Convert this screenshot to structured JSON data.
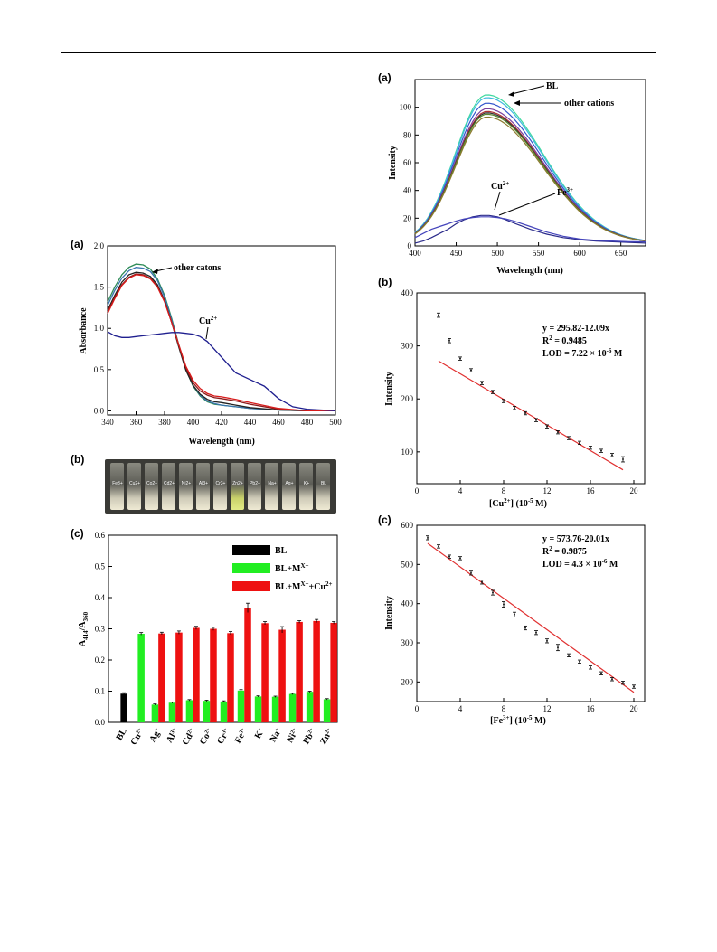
{
  "panel_labels": {
    "uv_a": "(a)",
    "photo_b": "(b)",
    "bar_c": "(c)",
    "fl_a": "(a)",
    "cu_b": "(b)",
    "fe_c": "(c)"
  },
  "vial_labels": [
    "Fe3+",
    "Cu2+",
    "Co2+",
    "Cd2+",
    "Ni2+",
    "Al3+",
    "Cr3+",
    "Zn2+",
    "Pb2+",
    "Na+",
    "Ag+",
    "K+",
    "BL"
  ],
  "chart_data": [
    {
      "id": "uv_absorbance",
      "type": "line",
      "xlabel": "Wavelength (nm)",
      "ylabel": "Absorbance",
      "xlim": [
        340,
        500
      ],
      "ylim": [
        -0.05,
        2.0
      ],
      "xticks": [
        340,
        360,
        380,
        400,
        420,
        440,
        460,
        480,
        500
      ],
      "yticks": [
        "0.0",
        "0.5",
        "1.0",
        "1.5",
        "2.0"
      ],
      "annotations": {
        "others": "other catons",
        "cu_base": "Cu",
        "cu_sup": "2+"
      },
      "series": [
        {
          "color": "#2e8b57",
          "x": [
            340,
            345,
            350,
            355,
            360,
            365,
            370,
            375,
            380,
            385,
            390,
            395,
            400,
            405,
            410,
            415,
            420,
            430,
            440,
            460,
            480,
            500
          ],
          "y": [
            1.32,
            1.5,
            1.65,
            1.74,
            1.78,
            1.77,
            1.72,
            1.6,
            1.4,
            1.12,
            0.8,
            0.5,
            0.3,
            0.18,
            0.11,
            0.08,
            0.07,
            0.05,
            0.03,
            0.01,
            0.0,
            0.0
          ]
        },
        {
          "color": "#3a74b0",
          "x": [
            340,
            345,
            350,
            355,
            360,
            365,
            370,
            375,
            380,
            385,
            390,
            395,
            400,
            405,
            410,
            415,
            420,
            430,
            440,
            460,
            480,
            500
          ],
          "y": [
            1.28,
            1.46,
            1.61,
            1.7,
            1.74,
            1.73,
            1.69,
            1.58,
            1.38,
            1.1,
            0.79,
            0.5,
            0.31,
            0.19,
            0.12,
            0.09,
            0.07,
            0.05,
            0.03,
            0.01,
            0.0,
            0.0
          ]
        },
        {
          "color": "#222222",
          "x": [
            340,
            345,
            350,
            355,
            360,
            365,
            370,
            375,
            380,
            385,
            390,
            395,
            400,
            405,
            410,
            415,
            420,
            430,
            440,
            460,
            480,
            500
          ],
          "y": [
            1.22,
            1.4,
            1.56,
            1.65,
            1.68,
            1.67,
            1.63,
            1.53,
            1.34,
            1.07,
            0.77,
            0.49,
            0.31,
            0.2,
            0.14,
            0.11,
            0.1,
            0.07,
            0.04,
            0.01,
            0.0,
            0.0
          ]
        },
        {
          "color": "#8b1a1a",
          "x": [
            340,
            345,
            350,
            355,
            360,
            365,
            370,
            375,
            380,
            385,
            390,
            395,
            400,
            405,
            410,
            415,
            420,
            430,
            440,
            460,
            480,
            500
          ],
          "y": [
            1.2,
            1.38,
            1.53,
            1.62,
            1.66,
            1.65,
            1.61,
            1.51,
            1.33,
            1.07,
            0.79,
            0.52,
            0.34,
            0.24,
            0.19,
            0.16,
            0.15,
            0.12,
            0.08,
            0.02,
            0.0,
            0.0
          ]
        },
        {
          "color": "#d81b1b",
          "x": [
            340,
            345,
            350,
            355,
            360,
            365,
            370,
            375,
            380,
            385,
            390,
            395,
            400,
            405,
            410,
            415,
            420,
            430,
            440,
            460,
            480,
            500
          ],
          "y": [
            1.18,
            1.36,
            1.52,
            1.61,
            1.65,
            1.64,
            1.6,
            1.5,
            1.32,
            1.07,
            0.8,
            0.54,
            0.37,
            0.27,
            0.21,
            0.18,
            0.17,
            0.14,
            0.1,
            0.03,
            0.0,
            0.0
          ]
        },
        {
          "color": "#1f1f8f",
          "x": [
            340,
            345,
            350,
            355,
            360,
            365,
            370,
            375,
            380,
            385,
            390,
            395,
            400,
            405,
            410,
            420,
            430,
            440,
            450,
            460,
            470,
            480,
            490,
            500
          ],
          "y": [
            0.96,
            0.91,
            0.89,
            0.89,
            0.9,
            0.91,
            0.92,
            0.93,
            0.94,
            0.95,
            0.95,
            0.94,
            0.93,
            0.9,
            0.84,
            0.65,
            0.46,
            0.38,
            0.3,
            0.15,
            0.05,
            0.02,
            0.01,
            0.0
          ]
        }
      ]
    },
    {
      "id": "ratio_bars",
      "type": "bar",
      "ylabel": "A414/A360",
      "ylim": [
        0,
        0.6
      ],
      "yticks": [
        "0.0",
        "0.1",
        "0.2",
        "0.3",
        "0.4",
        "0.5",
        "0.6"
      ],
      "categories": [
        {
          "b": "BL",
          "s": ""
        },
        {
          "b": "Cu",
          "s": "2+"
        },
        {
          "b": "Ag",
          "s": "+"
        },
        {
          "b": "Al",
          "s": "3+"
        },
        {
          "b": "Cd",
          "s": "2+"
        },
        {
          "b": "Co",
          "s": "2+"
        },
        {
          "b": "Cr",
          "s": "3+"
        },
        {
          "b": "Fe",
          "s": "3+"
        },
        {
          "b": "K",
          "s": "+"
        },
        {
          "b": "Na",
          "s": "+"
        },
        {
          "b": "Ni",
          "s": "2+"
        },
        {
          "b": "Pb",
          "s": "2+"
        },
        {
          "b": "Zn",
          "s": "2+"
        }
      ],
      "series": [
        {
          "name": "BL",
          "color": "#000000",
          "values": [
            0.092,
            null,
            null,
            null,
            null,
            null,
            null,
            null,
            null,
            null,
            null,
            null,
            null
          ],
          "errors": [
            0.003,
            0,
            0,
            0,
            0,
            0,
            0,
            0,
            0,
            0,
            0,
            0,
            0
          ]
        },
        {
          "name": "BL+MX+",
          "color": "#22ee22",
          "values": [
            null,
            0.284,
            0.057,
            0.063,
            0.071,
            0.069,
            0.067,
            0.102,
            0.083,
            0.082,
            0.091,
            0.098,
            0.074
          ],
          "errors": [
            0,
            0.004,
            0.002,
            0.002,
            0.002,
            0.002,
            0.002,
            0.003,
            0.002,
            0.002,
            0.002,
            0.002,
            0.002
          ]
        },
        {
          "name": "BL+MX++Cu2+",
          "color": "#ee1111",
          "values": [
            null,
            null,
            0.285,
            0.288,
            0.303,
            0.3,
            0.286,
            0.367,
            0.318,
            0.297,
            0.322,
            0.325,
            0.319
          ],
          "errors": [
            0,
            0,
            0.004,
            0.005,
            0.005,
            0.005,
            0.005,
            0.015,
            0.005,
            0.01,
            0.004,
            0.005,
            0.004
          ]
        }
      ],
      "legend": {
        "bl": "BL",
        "mx_base": "BL+M",
        "mx_sup": "X+",
        "cu_base": "BL+M",
        "cu_sup1": "X+",
        "cu_mid": "+Cu",
        "cu_sup2": "2+"
      },
      "ylabel_parts": {
        "a": "A",
        "s1": "414",
        "slash": "/A",
        "s2": "360"
      }
    },
    {
      "id": "fluorescence",
      "type": "line",
      "xlabel": "Wavelength (nm)",
      "ylabel": "Intensity",
      "xlim": [
        400,
        680
      ],
      "ylim": [
        0,
        120
      ],
      "xticks": [
        400,
        450,
        500,
        550,
        600,
        650
      ],
      "yticks": [
        0,
        20,
        40,
        60,
        80,
        100
      ],
      "annotations": {
        "bl": "BL",
        "others": "other cations",
        "cu_base": "Cu",
        "cu_sup": "2+",
        "fe_base": "Fe",
        "fe_sup": "3+"
      },
      "series": [
        {
          "color": "#40d9a0",
          "peak": 109
        },
        {
          "color": "#3fb8e0",
          "peak": 107
        },
        {
          "color": "#3355cc",
          "peak": 103
        },
        {
          "color": "#7b3f9e",
          "peak": 99
        },
        {
          "color": "#b03030",
          "peak": 97
        },
        {
          "color": "#333333",
          "peak": 96
        },
        {
          "color": "#5b8a2e",
          "peak": 95
        },
        {
          "color": "#8b7a2e",
          "peak": 93
        },
        {
          "color": "#2a2a8a",
          "x": [
            400,
            410,
            420,
            430,
            440,
            450,
            460,
            470,
            480,
            490,
            500,
            510,
            520,
            540,
            560,
            580,
            600,
            620,
            640,
            660,
            680
          ],
          "y": [
            2,
            3.5,
            6,
            9,
            12,
            16,
            19,
            21,
            22,
            22,
            21,
            19,
            16.5,
            12,
            8.5,
            6,
            4.5,
            3.5,
            3,
            2.5,
            2
          ]
        },
        {
          "color": "#4444bb",
          "x": [
            400,
            410,
            420,
            430,
            440,
            450,
            460,
            470,
            480,
            490,
            500,
            510,
            520,
            540,
            560,
            580,
            600,
            620,
            640,
            660,
            680
          ],
          "y": [
            6,
            9,
            12,
            14,
            16,
            18,
            19.5,
            20.5,
            21,
            21,
            20.5,
            19.5,
            18,
            14,
            10,
            7,
            5,
            4,
            3.5,
            3,
            3
          ]
        }
      ]
    },
    {
      "id": "cu_calibration",
      "type": "scatter",
      "xlabel_parts": {
        "pre": "[Cu",
        "sup1": "2+",
        "mid": "] (10",
        "sup2": "-5",
        "post": " M)"
      },
      "ylabel": "Intensity",
      "xlim": [
        0,
        21
      ],
      "ylim": [
        40,
        400
      ],
      "xticks": [
        0,
        4,
        8,
        12,
        16,
        20
      ],
      "yticks": [
        100,
        200,
        300,
        400
      ],
      "x": [
        2,
        3,
        4,
        5,
        6,
        7,
        8,
        9,
        10,
        11,
        12,
        13,
        14,
        15,
        16,
        17,
        18,
        19
      ],
      "y": [
        358,
        310,
        276,
        254,
        230,
        213,
        196,
        183,
        173,
        160,
        148,
        137,
        126,
        117,
        108,
        102,
        94,
        86
      ],
      "errors": [
        4,
        4,
        3,
        3,
        3,
        3,
        3,
        3,
        3,
        3,
        3,
        3,
        3,
        3,
        3,
        3,
        3,
        5
      ],
      "fit": {
        "intercept": 295.82,
        "slope": -12.09,
        "x_range": [
          2,
          19
        ]
      },
      "equation": "y = 295.82-12.09x",
      "r2_label": "R",
      "r2_sup": "2",
      "r2_value": " = 0.9485",
      "lod_text": "LOD = 7.22 × 10",
      "lod_exp": "-6",
      "lod_unit": " M"
    },
    {
      "id": "fe_calibration",
      "type": "scatter",
      "xlabel_parts": {
        "pre": "[Fe",
        "sup1": "3+",
        "mid": "] (10",
        "sup2": "-5",
        "post": " M)"
      },
      "ylabel": "Intensity",
      "xlim": [
        0,
        21
      ],
      "ylim": [
        150,
        600
      ],
      "xticks": [
        0,
        4,
        8,
        12,
        16,
        20
      ],
      "yticks": [
        200,
        300,
        400,
        500,
        600
      ],
      "x": [
        1,
        2,
        3,
        4,
        5,
        6,
        7,
        8,
        9,
        10,
        11,
        12,
        13,
        14,
        15,
        16,
        17,
        18,
        19,
        20
      ],
      "y": [
        568,
        546,
        520,
        516,
        478,
        455,
        428,
        398,
        372,
        338,
        326,
        305,
        288,
        268,
        252,
        237,
        222,
        207,
        198,
        188
      ],
      "errors": [
        5,
        4,
        4,
        4,
        5,
        5,
        6,
        7,
        6,
        5,
        5,
        5,
        8,
        4,
        4,
        4,
        4,
        4,
        4,
        4
      ],
      "fit": {
        "intercept": 573.76,
        "slope": -20.01,
        "x_range": [
          1,
          20
        ]
      },
      "equation": "y = 573.76-20.01x",
      "r2_label": "R",
      "r2_sup": "2",
      "r2_value": " = 0.9875",
      "lod_text": "LOD = 4.3 × 10",
      "lod_exp": "-6",
      "lod_unit": " M"
    }
  ]
}
